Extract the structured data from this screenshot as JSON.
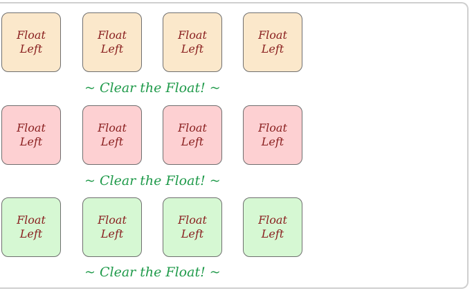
{
  "demo": {
    "rows": [
      {
        "color": "#fbe8cb",
        "boxes": [
          {
            "line1": "Float",
            "line2": "Left"
          },
          {
            "line1": "Float",
            "line2": "Left"
          },
          {
            "line1": "Float",
            "line2": "Left"
          },
          {
            "line1": "Float",
            "line2": "Left"
          }
        ],
        "clear_text": "~ Clear the Float! ~"
      },
      {
        "color": "#fdd0d2",
        "boxes": [
          {
            "line1": "Float",
            "line2": "Left"
          },
          {
            "line1": "Float",
            "line2": "Left"
          },
          {
            "line1": "Float",
            "line2": "Left"
          },
          {
            "line1": "Float",
            "line2": "Left"
          }
        ],
        "clear_text": "~ Clear the Float! ~"
      },
      {
        "color": "#d6f8d3",
        "boxes": [
          {
            "line1": "Float",
            "line2": "Left"
          },
          {
            "line1": "Float",
            "line2": "Left"
          },
          {
            "line1": "Float",
            "line2": "Left"
          },
          {
            "line1": "Float",
            "line2": "Left"
          }
        ],
        "clear_text": "~ Clear the Float! ~"
      }
    ]
  }
}
